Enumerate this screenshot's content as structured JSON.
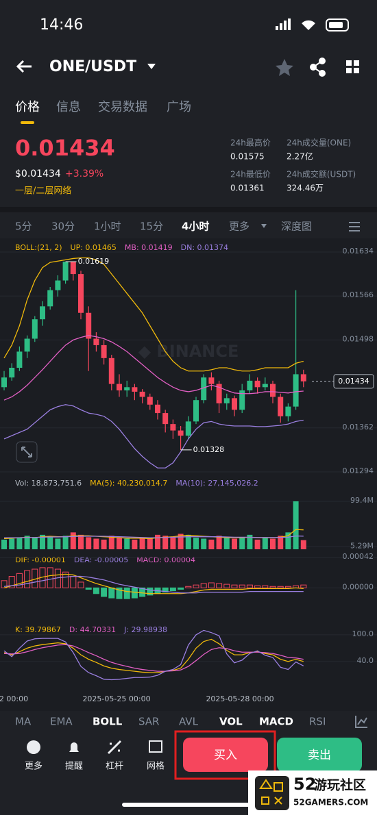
{
  "status": {
    "time": "14:46"
  },
  "header": {
    "pair": "ONE/USDT"
  },
  "tabs": [
    "价格",
    "信息",
    "交易数据",
    "广场"
  ],
  "price": {
    "last": "0.01434",
    "usd": "$0.01434",
    "change": "+3.39%",
    "tag": "一层/二层网络"
  },
  "stats": [
    {
      "label": "24h最高价",
      "value": "0.01575"
    },
    {
      "label": "24h成交量(ONE)",
      "value": "2.27亿"
    },
    {
      "label": "24h最低价",
      "value": "0.01361"
    },
    {
      "label": "24h成交额(USDT)",
      "value": "324.46万"
    }
  ],
  "intervals": [
    "5分",
    "30分",
    "1小时",
    "15分",
    "4小时",
    "更多",
    "深度图"
  ],
  "indicators": [
    "MA",
    "EMA",
    "BOLL",
    "SAR",
    "AVL",
    "VOL",
    "MACD",
    "RSI"
  ],
  "actions": [
    "更多",
    "提醒",
    "杠杆",
    "网格"
  ],
  "buy": "买入",
  "sell": "卖出",
  "watermark": {
    "logo": "52",
    "text": "游玩社区",
    "url": "52GAMERS.COM"
  },
  "xlabels": [
    "2 00:00",
    "2025-05-25 00:00",
    "2025-05-28 00:00"
  ],
  "chart_data": [
    {
      "type": "candlestick",
      "legend": [
        "BOLL:(21, 2)",
        "UP: 0.01465",
        "MB: 0.01419",
        "DN: 0.01374"
      ],
      "legend_colors": [
        "#f0b90b",
        "#f0b90b",
        "#e25fc4",
        "#9a7fe0"
      ],
      "up_color": "#2ebd85",
      "down_color": "#f6465d",
      "candles": [
        [
          0.01425,
          0.0145,
          0.0142,
          0.0144
        ],
        [
          0.0144,
          0.01462,
          0.01435,
          0.01455
        ],
        [
          0.01455,
          0.01488,
          0.0145,
          0.0148
        ],
        [
          0.0148,
          0.01505,
          0.0147,
          0.015
        ],
        [
          0.015,
          0.01535,
          0.01495,
          0.0153
        ],
        [
          0.0153,
          0.01558,
          0.0152,
          0.0155
        ],
        [
          0.0155,
          0.0158,
          0.01545,
          0.01575
        ],
        [
          0.01575,
          0.01598,
          0.01565,
          0.0159
        ],
        [
          0.0159,
          0.01619,
          0.01585,
          0.01619
        ],
        [
          0.01619,
          0.01619,
          0.0159,
          0.016
        ],
        [
          0.016,
          0.01605,
          0.0153,
          0.0154
        ],
        [
          0.0154,
          0.0155,
          0.0145,
          0.015
        ],
        [
          0.015,
          0.0151,
          0.0148,
          0.0149
        ],
        [
          0.0149,
          0.01498,
          0.0146,
          0.0147
        ],
        [
          0.0147,
          0.01475,
          0.0142,
          0.0143
        ],
        [
          0.0143,
          0.01445,
          0.0141,
          0.0142
        ],
        [
          0.0142,
          0.01435,
          0.0141,
          0.01425
        ],
        [
          0.01425,
          0.0143,
          0.01405,
          0.01418
        ],
        [
          0.01418,
          0.01422,
          0.014,
          0.0141
        ],
        [
          0.0141,
          0.01415,
          0.0139,
          0.01398
        ],
        [
          0.01398,
          0.01405,
          0.01375,
          0.01385
        ],
        [
          0.01385,
          0.0139,
          0.01355,
          0.01368
        ],
        [
          0.01368,
          0.01375,
          0.01345,
          0.01358
        ],
        [
          0.01358,
          0.01365,
          0.01328,
          0.0135
        ],
        [
          0.0135,
          0.0138,
          0.01345,
          0.01372
        ],
        [
          0.01372,
          0.0141,
          0.01368,
          0.01405
        ],
        [
          0.01405,
          0.01445,
          0.014,
          0.0144
        ],
        [
          0.0144,
          0.01448,
          0.0142,
          0.0143
        ],
        [
          0.0143,
          0.01435,
          0.01385,
          0.014
        ],
        [
          0.014,
          0.01415,
          0.0139,
          0.01408
        ],
        [
          0.01408,
          0.01412,
          0.0138,
          0.0139
        ],
        [
          0.0139,
          0.0143,
          0.01385,
          0.0142
        ],
        [
          0.0142,
          0.01445,
          0.01415,
          0.01435
        ],
        [
          0.01435,
          0.0144,
          0.01415,
          0.01425
        ],
        [
          0.01425,
          0.0144,
          0.0142,
          0.0143
        ],
        [
          0.0143,
          0.01435,
          0.014,
          0.0141
        ],
        [
          0.0141,
          0.01415,
          0.0137,
          0.0138
        ],
        [
          0.0138,
          0.014,
          0.01372,
          0.01395
        ],
        [
          0.01395,
          0.01575,
          0.0139,
          0.01445
        ],
        [
          0.01445,
          0.01452,
          0.01425,
          0.01434
        ]
      ],
      "bands": [
        {
          "color": "#f0b90b",
          "values": [
            0.0147,
            0.0149,
            0.0152,
            0.0156,
            0.0159,
            0.0161,
            0.01618,
            0.0162,
            0.01622,
            0.01624,
            0.01625,
            0.01625,
            0.01622,
            0.01615,
            0.016,
            0.01585,
            0.0157,
            0.01555,
            0.0154,
            0.0152,
            0.015,
            0.0148,
            0.01465,
            0.01455,
            0.0145,
            0.0145,
            0.0145,
            0.01452,
            0.01455,
            0.01455,
            0.01452,
            0.0145,
            0.0145,
            0.01452,
            0.01455,
            0.01455,
            0.01455,
            0.01455,
            0.01462,
            0.01465
          ]
        },
        {
          "color": "#e25fc4",
          "values": [
            0.01405,
            0.0141,
            0.01418,
            0.01428,
            0.0144,
            0.01452,
            0.01465,
            0.01478,
            0.0149,
            0.01498,
            0.01502,
            0.01505,
            0.01503,
            0.015,
            0.01495,
            0.01488,
            0.0148,
            0.0147,
            0.0146,
            0.0145,
            0.0144,
            0.01432,
            0.01425,
            0.0142,
            0.01418,
            0.0142,
            0.01424,
            0.01428,
            0.01425,
            0.0142,
            0.01416,
            0.01415,
            0.01415,
            0.01416,
            0.01418,
            0.01418,
            0.01417,
            0.01416,
            0.01418,
            0.01419
          ]
        },
        {
          "color": "#9a7fe0",
          "values": [
            0.01345,
            0.0135,
            0.01355,
            0.0136,
            0.0137,
            0.0138,
            0.0139,
            0.01395,
            0.01398,
            0.01396,
            0.0139,
            0.01385,
            0.01383,
            0.0138,
            0.01372,
            0.0136,
            0.01345,
            0.0133,
            0.01318,
            0.01308,
            0.013,
            0.013,
            0.01308,
            0.01325,
            0.01345,
            0.0136,
            0.0137,
            0.01372,
            0.01368,
            0.01366,
            0.01365,
            0.01365,
            0.01365,
            0.01364,
            0.01364,
            0.01365,
            0.01366,
            0.01368,
            0.01372,
            0.01374
          ]
        }
      ],
      "ylim": [
        0.01294,
        0.01634
      ],
      "yticks": [
        0.01634,
        0.01566,
        0.01498,
        0.01362,
        0.01294
      ],
      "high": 0.01619,
      "low": 0.01328,
      "last": 0.01434
    },
    {
      "type": "volume",
      "legend": [
        "Vol: 18,873,751.6",
        "MA(5): 40,230,014.7",
        "MA(10): 27,145,026.2"
      ],
      "legend_colors": [
        "#b7bdc6",
        "#f0b90b",
        "#9a7fe0"
      ],
      "values": [
        20000000,
        22000000,
        25000000,
        28000000,
        24000000,
        30000000,
        26000000,
        22000000,
        28000000,
        35000000,
        30000000,
        25000000,
        22000000,
        20000000,
        28000000,
        24000000,
        22000000,
        20000000,
        24000000,
        22000000,
        30000000,
        28000000,
        26000000,
        32000000,
        30000000,
        24000000,
        22000000,
        20000000,
        28000000,
        26000000,
        22000000,
        24000000,
        30000000,
        20000000,
        25000000,
        22000000,
        28000000,
        35000000,
        99400000,
        18873751.6
      ],
      "ma": [
        {
          "color": "#f0b90b",
          "values": [
            22000000,
            23000000,
            24000000,
            25000000,
            24000000,
            26000000,
            27000000,
            26000000,
            26000000,
            28000000,
            28000000,
            28000000,
            27000000,
            26000000,
            25000000,
            24000000,
            23000000,
            23000000,
            23000000,
            22000000,
            24000000,
            25000000,
            26000000,
            28000000,
            29000000,
            28000000,
            27000000,
            26000000,
            25000000,
            24000000,
            24000000,
            24000000,
            25000000,
            24000000,
            24000000,
            24000000,
            25000000,
            28000000,
            41000000,
            40230014.7
          ]
        },
        {
          "color": "#9a7fe0",
          "values": [
            24000000,
            24000000,
            24000000,
            24500000,
            24500000,
            25000000,
            25500000,
            25500000,
            26000000,
            26500000,
            27000000,
            27000000,
            27000000,
            27000000,
            26500000,
            26000000,
            25500000,
            25000000,
            24500000,
            24000000,
            24000000,
            24500000,
            25000000,
            25500000,
            26000000,
            26000000,
            26000000,
            26000000,
            26000000,
            25500000,
            25000000,
            25000000,
            25000000,
            24500000,
            24500000,
            24500000,
            24500000,
            25000000,
            27500000,
            27145026.2
          ]
        }
      ],
      "ylim": [
        0,
        99400000
      ],
      "yticks": [
        {
          "value": 99400000,
          "label": "99.4M"
        },
        {
          "value": 5290000,
          "label": "5.29M"
        }
      ]
    },
    {
      "type": "macd",
      "legend": [
        "DIF: -0.00001",
        "DEA: -0.00005",
        "MACD: 0.00004"
      ],
      "legend_colors": [
        "#f0b90b",
        "#9a7fe0",
        "#e25fc4"
      ],
      "hist": [
        0.0001,
        0.00016,
        0.0002,
        0.00024,
        0.00026,
        0.00028,
        0.00028,
        0.00026,
        0.00022,
        0.00016,
        8e-05,
        -2e-05,
        -8e-05,
        -0.00012,
        -0.00014,
        -0.00015,
        -0.00015,
        -0.00014,
        -0.00012,
        -0.0001,
        -8e-05,
        -6e-05,
        -4e-05,
        -2e-05,
        2e-05,
        4e-05,
        6e-05,
        7e-05,
        6e-05,
        5e-05,
        4e-05,
        4e-05,
        4e-05,
        3e-05,
        3e-05,
        2e-05,
        2e-05,
        2e-05,
        3e-05,
        4e-05
      ],
      "lines": [
        {
          "color": "#f0b90b",
          "values": [
            0.0,
            3e-05,
            6e-05,
            9e-05,
            0.00012,
            0.00015,
            0.00017,
            0.00018,
            0.00019,
            0.00018,
            0.00014,
            0.0001,
            6e-05,
            3e-05,
            0.0,
            -3e-05,
            -5e-05,
            -6e-05,
            -7e-05,
            -8e-05,
            -8e-05,
            -8e-05,
            -8e-05,
            -8e-05,
            -7e-05,
            -5e-05,
            -3e-05,
            -2e-05,
            -2e-05,
            -2e-05,
            -2e-05,
            -2e-05,
            -1e-05,
            -1e-05,
            -1e-05,
            -1e-05,
            -1e-05,
            -1e-05,
            0.0,
            -1e-05
          ]
        },
        {
          "color": "#9a7fe0",
          "values": [
            2e-05,
            3e-05,
            4e-05,
            6e-05,
            8e-05,
            0.0001,
            0.00012,
            0.00014,
            0.00015,
            0.00016,
            0.00016,
            0.00015,
            0.00013,
            0.00011,
            8e-05,
            5e-05,
            3e-05,
            1e-05,
            -1e-05,
            -3e-05,
            -4e-05,
            -5e-05,
            -6e-05,
            -7e-05,
            -7e-05,
            -7e-05,
            -6e-05,
            -6e-05,
            -6e-05,
            -6e-05,
            -6e-05,
            -6e-05,
            -5e-05,
            -5e-05,
            -5e-05,
            -5e-05,
            -5e-05,
            -5e-05,
            -5e-05,
            -5e-05
          ]
        }
      ],
      "ylim": [
        -0.00032,
        0.00046
      ],
      "yticks": [
        0.00042,
        {
          "value": 0,
          "label": "0.00000"
        }
      ]
    },
    {
      "type": "kdj",
      "legend": [
        "K: 39.79867",
        "D: 44.70331",
        "J: 29.98938"
      ],
      "legend_colors": [
        "#f0b90b",
        "#e25fc4",
        "#9a7fe0"
      ],
      "lines": [
        {
          "color": "#f0b90b",
          "values": [
            60,
            55,
            62,
            70,
            75,
            78,
            80,
            82,
            80,
            70,
            55,
            45,
            38,
            30,
            25,
            22,
            20,
            18,
            16,
            15,
            15,
            18,
            20,
            25,
            45,
            70,
            85,
            90,
            80,
            65,
            55,
            55,
            60,
            62,
            58,
            55,
            45,
            40,
            45,
            40
          ]
        },
        {
          "color": "#e25fc4",
          "values": [
            58,
            57,
            58,
            62,
            67,
            71,
            74,
            77,
            78,
            75,
            68,
            60,
            53,
            45,
            38,
            33,
            29,
            25,
            22,
            20,
            18,
            18,
            19,
            21,
            29,
            42,
            56,
            67,
            71,
            69,
            64,
            61,
            61,
            61,
            60,
            58,
            54,
            49,
            48,
            45
          ]
        },
        {
          "color": "#9a7fe0",
          "values": [
            64,
            51,
            70,
            86,
            91,
            92,
            92,
            92,
            84,
            60,
            29,
            15,
            8,
            0,
            -1,
            0,
            2,
            4,
            4,
            5,
            9,
            18,
            22,
            33,
            77,
            100,
            110,
            105,
            98,
            57,
            37,
            43,
            58,
            64,
            54,
            49,
            27,
            22,
            39,
            30
          ]
        }
      ],
      "ylim": [
        -28,
        123
      ],
      "yticks": [
        {
          "value": 100,
          "label": "100.0"
        },
        {
          "value": 40,
          "label": "40.0"
        }
      ]
    }
  ]
}
